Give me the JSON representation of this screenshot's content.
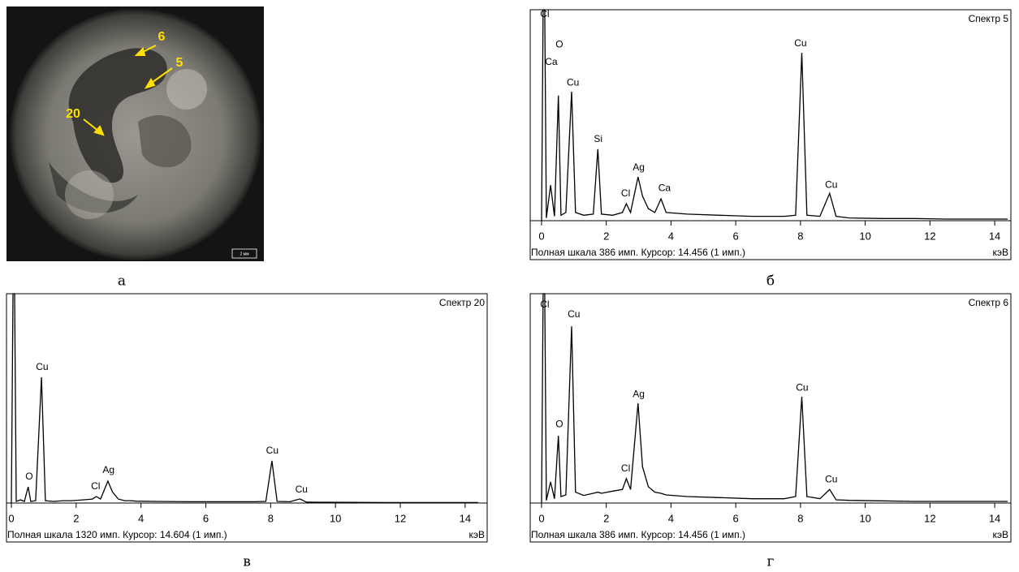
{
  "photo": {
    "labels": [
      "6",
      "5",
      "20"
    ],
    "scale_bar": "2 мм",
    "caption": "а"
  },
  "chart_data": [
    {
      "type": "line",
      "title": "Спектр 5",
      "footer": "Полная шкала 386 имп. Курсор: 14.456  (1 имп.)",
      "xlabel": "кэВ",
      "caption": "б",
      "color": "#000000",
      "x": [
        0,
        0.05,
        0.1,
        0.15,
        0.28,
        0.4,
        0.52,
        0.6,
        0.75,
        0.93,
        1.05,
        1.3,
        1.6,
        1.74,
        1.85,
        2.2,
        2.5,
        2.62,
        2.75,
        2.98,
        3.12,
        3.3,
        3.5,
        3.69,
        3.85,
        4.5,
        5.5,
        6.5,
        7.5,
        7.85,
        8.04,
        8.2,
        8.6,
        8.9,
        9.1,
        9.5,
        10.5,
        11.5,
        12.5,
        13.5,
        14.4
      ],
      "values": [
        0,
        386,
        386,
        5,
        65,
        8,
        229,
        10,
        15,
        236,
        15,
        10,
        12,
        131,
        12,
        10,
        15,
        31,
        15,
        80,
        45,
        22,
        15,
        40,
        15,
        12,
        10,
        8,
        8,
        10,
        307,
        10,
        8,
        50,
        8,
        5,
        4,
        4,
        3,
        3,
        3
      ],
      "xlim": [
        -0.35,
        14.5
      ],
      "ylim": [
        0,
        386
      ],
      "xticks": [
        0,
        2,
        4,
        6,
        8,
        10,
        12,
        14
      ],
      "annotations": [
        {
          "text": "Cl",
          "x": 0.1,
          "y": 377
        },
        {
          "text": "O",
          "x": 0.55,
          "y": 322
        },
        {
          "text": "Ca",
          "x": 0.3,
          "y": 290
        },
        {
          "text": "Cu",
          "x": 0.97,
          "y": 252
        },
        {
          "text": "Si",
          "x": 1.75,
          "y": 149
        },
        {
          "text": "Ag",
          "x": 3.0,
          "y": 97
        },
        {
          "text": "Cl",
          "x": 2.6,
          "y": 49
        },
        {
          "text": "Ca",
          "x": 3.8,
          "y": 59
        },
        {
          "text": "Cu",
          "x": 8.0,
          "y": 324
        },
        {
          "text": "Cu",
          "x": 8.95,
          "y": 65
        }
      ]
    },
    {
      "type": "line",
      "title": "Спектр 20",
      "footer": "Полная шкала 1320 имп. Курсор: 14.604  (1 имп.)",
      "xlabel": "кэВ",
      "caption": "в",
      "color": "#000000",
      "x": [
        0,
        0.05,
        0.1,
        0.15,
        0.28,
        0.4,
        0.52,
        0.6,
        0.75,
        0.93,
        1.05,
        1.3,
        1.6,
        1.74,
        1.85,
        2.2,
        2.5,
        2.62,
        2.75,
        2.98,
        3.12,
        3.3,
        3.5,
        3.69,
        3.85,
        4.5,
        5.5,
        6.5,
        7.5,
        7.85,
        8.04,
        8.2,
        8.6,
        8.9,
        9.1,
        9.5,
        10.5,
        11.5,
        12.5,
        13.5,
        14.4
      ],
      "values": [
        0,
        1320,
        1320,
        10,
        20,
        10,
        102,
        10,
        15,
        793,
        15,
        10,
        15,
        15,
        15,
        20,
        25,
        41,
        25,
        138,
        70,
        25,
        15,
        15,
        12,
        10,
        8,
        8,
        8,
        10,
        266,
        10,
        8,
        26,
        6,
        5,
        4,
        3,
        3,
        3,
        3
      ],
      "xlim": [
        -0.15,
        14.68
      ],
      "ylim": [
        0,
        1320
      ],
      "xticks": [
        0,
        2,
        4,
        6,
        8,
        10,
        12,
        14
      ],
      "annotations": [
        {
          "text": "Cu",
          "x": 0.95,
          "y": 855
        },
        {
          "text": "O",
          "x": 0.55,
          "y": 164
        },
        {
          "text": "Cl",
          "x": 2.6,
          "y": 102
        },
        {
          "text": "Ag",
          "x": 3.0,
          "y": 205
        },
        {
          "text": "Cu",
          "x": 8.05,
          "y": 328
        },
        {
          "text": "Cu",
          "x": 8.95,
          "y": 82
        }
      ]
    },
    {
      "type": "line",
      "title": "Спектр 6",
      "footer": "Полная шкала 386 имп. Курсор: 14.456  (1 имп.)",
      "xlabel": "кэВ",
      "caption": "г",
      "color": "#000000",
      "x": [
        0,
        0.05,
        0.1,
        0.15,
        0.28,
        0.4,
        0.52,
        0.6,
        0.75,
        0.93,
        1.05,
        1.3,
        1.6,
        1.74,
        1.85,
        2.2,
        2.5,
        2.62,
        2.75,
        2.98,
        3.12,
        3.3,
        3.5,
        3.69,
        3.85,
        4.5,
        5.5,
        6.5,
        7.5,
        7.85,
        8.04,
        8.2,
        8.6,
        8.9,
        9.1,
        9.5,
        10.5,
        11.5,
        12.5,
        13.5,
        14.4
      ],
      "values": [
        0,
        386,
        386,
        5,
        39,
        8,
        124,
        12,
        15,
        326,
        20,
        14,
        18,
        20,
        18,
        22,
        25,
        45,
        25,
        184,
        67,
        30,
        20,
        18,
        15,
        12,
        10,
        8,
        8,
        12,
        196,
        12,
        8,
        25,
        6,
        5,
        4,
        3,
        3,
        3,
        3
      ],
      "xlim": [
        -0.35,
        14.5
      ],
      "ylim": [
        0,
        386
      ],
      "xticks": [
        0,
        2,
        4,
        6,
        8,
        10,
        12,
        14
      ],
      "annotations": [
        {
          "text": "Cl",
          "x": 0.1,
          "y": 365
        },
        {
          "text": "Cu",
          "x": 1.0,
          "y": 347
        },
        {
          "text": "O",
          "x": 0.55,
          "y": 145
        },
        {
          "text": "Cl",
          "x": 2.6,
          "y": 63
        },
        {
          "text": "Ag",
          "x": 3.0,
          "y": 200
        },
        {
          "text": "Cu",
          "x": 8.05,
          "y": 212
        },
        {
          "text": "Cu",
          "x": 8.95,
          "y": 43
        }
      ]
    }
  ]
}
